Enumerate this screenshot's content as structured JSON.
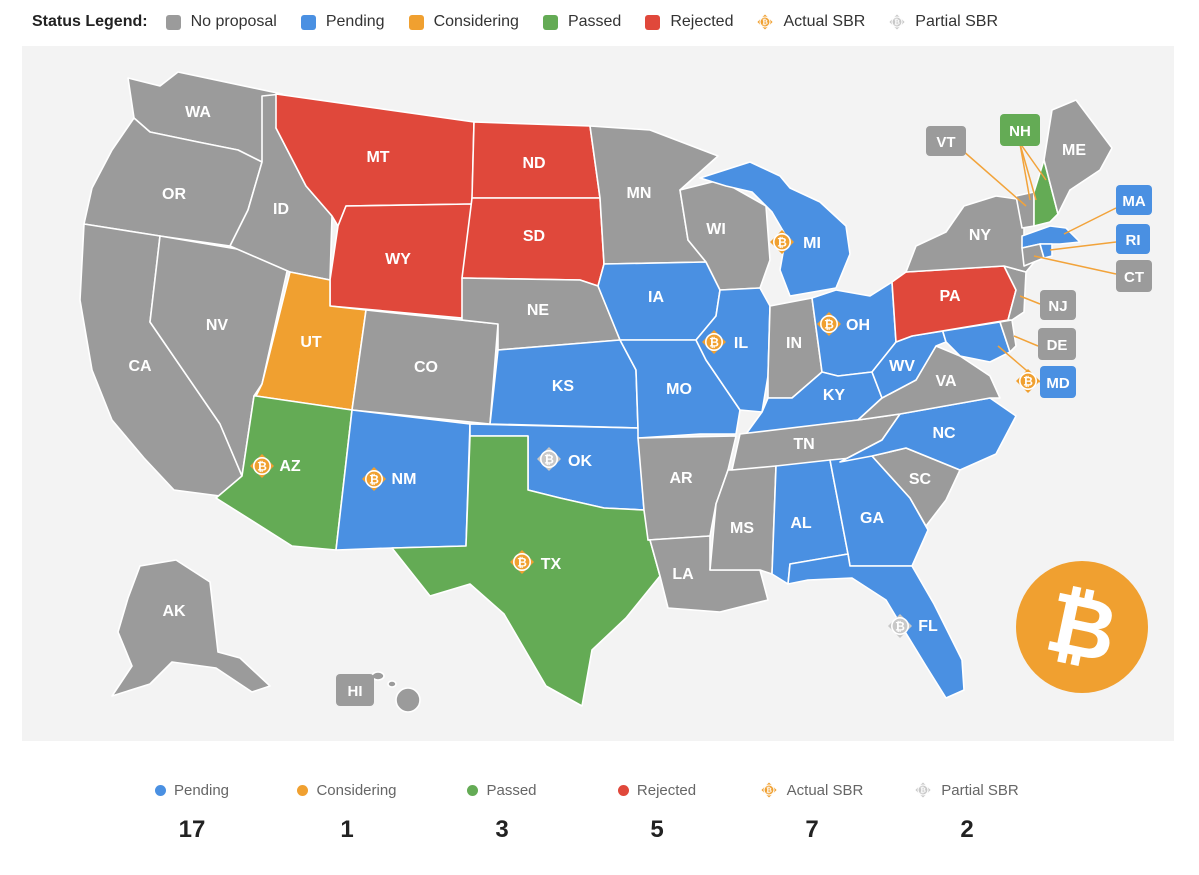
{
  "legend": {
    "title": "Status Legend:",
    "items": [
      {
        "key": "none",
        "label": "No proposal",
        "color": "#9b9b9b"
      },
      {
        "key": "pending",
        "label": "Pending",
        "color": "#4a90e2"
      },
      {
        "key": "considering",
        "label": "Considering",
        "color": "#f0a030"
      },
      {
        "key": "passed",
        "label": "Passed",
        "color": "#64ab55"
      },
      {
        "key": "rejected",
        "label": "Rejected",
        "color": "#e0483b"
      },
      {
        "key": "actual",
        "label": "Actual SBR",
        "icon": "bitcoin-icon",
        "color": "#f0a030"
      },
      {
        "key": "partial",
        "label": "Partial SBR",
        "icon": "bitcoin-icon",
        "color": "#cccccc"
      }
    ]
  },
  "colors": {
    "none": "#9b9b9b",
    "pending": "#4a90e2",
    "considering": "#f0a030",
    "passed": "#64ab55",
    "rejected": "#e0483b",
    "actual_icon": "#f0a030",
    "partial_icon": "#c8c8c8",
    "panel_bg": "#f3f3f3",
    "callout_line": "#f2a33a"
  },
  "states": {
    "WA": {
      "status": "none"
    },
    "OR": {
      "status": "none"
    },
    "CA": {
      "status": "none"
    },
    "NV": {
      "status": "none"
    },
    "ID": {
      "status": "none"
    },
    "MT": {
      "status": "rejected"
    },
    "WY": {
      "status": "rejected"
    },
    "UT": {
      "status": "considering"
    },
    "CO": {
      "status": "none"
    },
    "AZ": {
      "status": "passed",
      "sbr": "actual"
    },
    "NM": {
      "status": "pending",
      "sbr": "actual"
    },
    "ND": {
      "status": "rejected"
    },
    "SD": {
      "status": "rejected"
    },
    "NE": {
      "status": "none"
    },
    "KS": {
      "status": "pending"
    },
    "OK": {
      "status": "pending",
      "sbr": "partial"
    },
    "TX": {
      "status": "passed",
      "sbr": "actual"
    },
    "MN": {
      "status": "none"
    },
    "IA": {
      "status": "pending"
    },
    "MO": {
      "status": "pending"
    },
    "AR": {
      "status": "none"
    },
    "LA": {
      "status": "none"
    },
    "WI": {
      "status": "none"
    },
    "IL": {
      "status": "pending",
      "sbr": "actual"
    },
    "MI": {
      "status": "pending",
      "sbr": "actual"
    },
    "IN": {
      "status": "none"
    },
    "OH": {
      "status": "pending",
      "sbr": "actual"
    },
    "KY": {
      "status": "pending"
    },
    "TN": {
      "status": "none"
    },
    "MS": {
      "status": "none"
    },
    "AL": {
      "status": "pending"
    },
    "GA": {
      "status": "pending"
    },
    "FL": {
      "status": "pending",
      "sbr": "partial"
    },
    "SC": {
      "status": "none"
    },
    "NC": {
      "status": "pending"
    },
    "VA": {
      "status": "none"
    },
    "WV": {
      "status": "pending"
    },
    "MD": {
      "status": "pending",
      "sbr": "actual"
    },
    "DE": {
      "status": "none"
    },
    "NJ": {
      "status": "none"
    },
    "PA": {
      "status": "rejected"
    },
    "NY": {
      "status": "none"
    },
    "VT": {
      "status": "none"
    },
    "NH": {
      "status": "passed"
    },
    "ME": {
      "status": "none"
    },
    "MA": {
      "status": "pending"
    },
    "RI": {
      "status": "pending"
    },
    "CT": {
      "status": "none"
    },
    "AK": {
      "status": "none"
    },
    "HI": {
      "status": "none"
    }
  },
  "brand_icon": "bitcoin-icon",
  "summary": [
    {
      "key": "pending",
      "label": "Pending",
      "value": "17",
      "color": "#4a90e2"
    },
    {
      "key": "considering",
      "label": "Considering",
      "value": "1",
      "color": "#f0a030"
    },
    {
      "key": "passed",
      "label": "Passed",
      "value": "3",
      "color": "#64ab55"
    },
    {
      "key": "rejected",
      "label": "Rejected",
      "value": "5",
      "color": "#e0483b"
    },
    {
      "key": "actual",
      "label": "Actual SBR",
      "value": "7",
      "icon": "bitcoin-icon",
      "color": "#f0a030"
    },
    {
      "key": "partial",
      "label": "Partial SBR",
      "value": "2",
      "icon": "bitcoin-icon",
      "color": "#c8c8c8"
    }
  ]
}
